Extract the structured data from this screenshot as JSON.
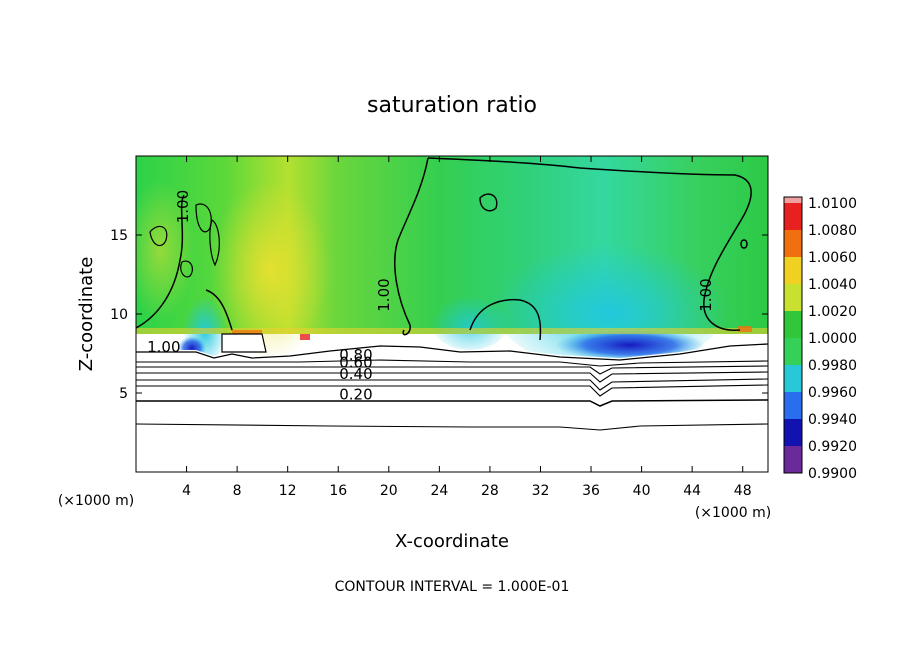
{
  "chart_data": {
    "type": "heatmap",
    "title": "saturation ratio",
    "xlabel": "X-coordinate",
    "ylabel": "Z-coordinate",
    "x_unit_left": "(×1000 m)",
    "x_unit_right": "(×1000 m)",
    "xlim": [
      0,
      50
    ],
    "ylim": [
      0,
      20
    ],
    "x_ticks": [
      4,
      8,
      12,
      16,
      20,
      24,
      28,
      32,
      36,
      40,
      44,
      48
    ],
    "y_ticks": [
      5,
      10,
      15
    ],
    "footer": "CONTOUR INTERVAL = 1.000E-01",
    "colorbar": {
      "levels": [
        "0.9900",
        "0.9920",
        "0.9940",
        "0.9960",
        "0.9980",
        "1.0000",
        "1.0020",
        "1.0040",
        "1.0060",
        "1.0080",
        "1.0100"
      ],
      "colors": [
        "#6a2a9a",
        "#1212b0",
        "#2a6ef0",
        "#28c8d8",
        "#34d058",
        "#30c83a",
        "#c8e030",
        "#f0d020",
        "#f07010",
        "#e82020",
        "#f0a0a0"
      ]
    },
    "contour_labels": [
      {
        "text": "1.00",
        "x": 2.2,
        "y": 7.6
      },
      {
        "text": "1.00",
        "x": 4.1,
        "y": 16.8,
        "angle": -90
      },
      {
        "text": "1.00",
        "x": 20.0,
        "y": 11.2,
        "angle": -90
      },
      {
        "text": "1.00",
        "x": 45.5,
        "y": 11.2,
        "angle": -90
      },
      {
        "text": "0.80",
        "x": 17.4,
        "y": 7.1
      },
      {
        "text": "0.60",
        "x": 17.4,
        "y": 6.6
      },
      {
        "text": "0.40",
        "x": 17.4,
        "y": 5.9
      },
      {
        "text": "0.20",
        "x": 17.4,
        "y": 4.6
      }
    ]
  }
}
